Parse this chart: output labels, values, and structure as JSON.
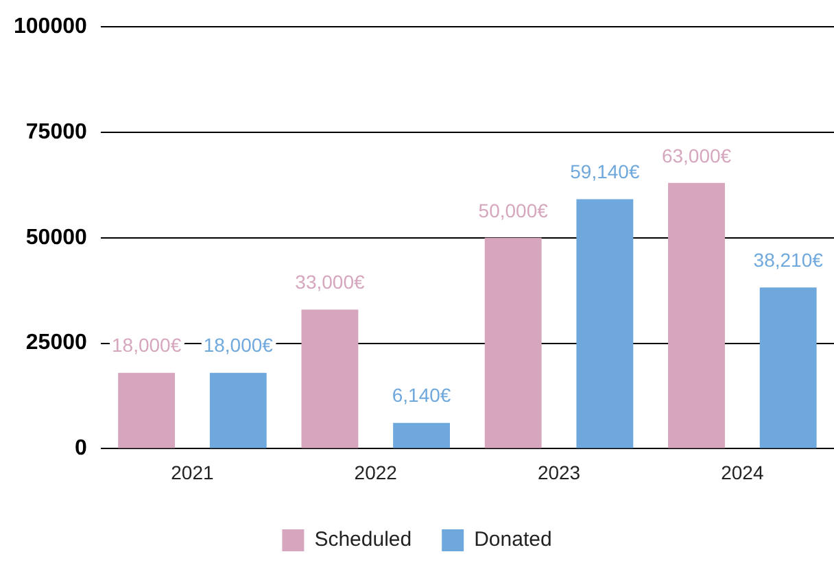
{
  "chart_data": {
    "type": "bar",
    "categories": [
      "2021",
      "2022",
      "2023",
      "2024"
    ],
    "series": [
      {
        "name": "Scheduled",
        "color": "#d5a6bd",
        "values": [
          18000,
          33000,
          50000,
          63000
        ],
        "value_labels": [
          "18,000€",
          "33,000€",
          "50,000€",
          "63,000€"
        ]
      },
      {
        "name": "Donated",
        "color": "#6fa8dc",
        "values": [
          18000,
          6140,
          59140,
          38210
        ],
        "value_labels": [
          "18,000€",
          "6,140€",
          "59,140€",
          "38,210€"
        ]
      }
    ],
    "ylim": [
      0,
      100000
    ],
    "yticks": [
      0,
      25000,
      50000,
      75000,
      100000
    ],
    "grid": "y",
    "legend": "bottom"
  }
}
